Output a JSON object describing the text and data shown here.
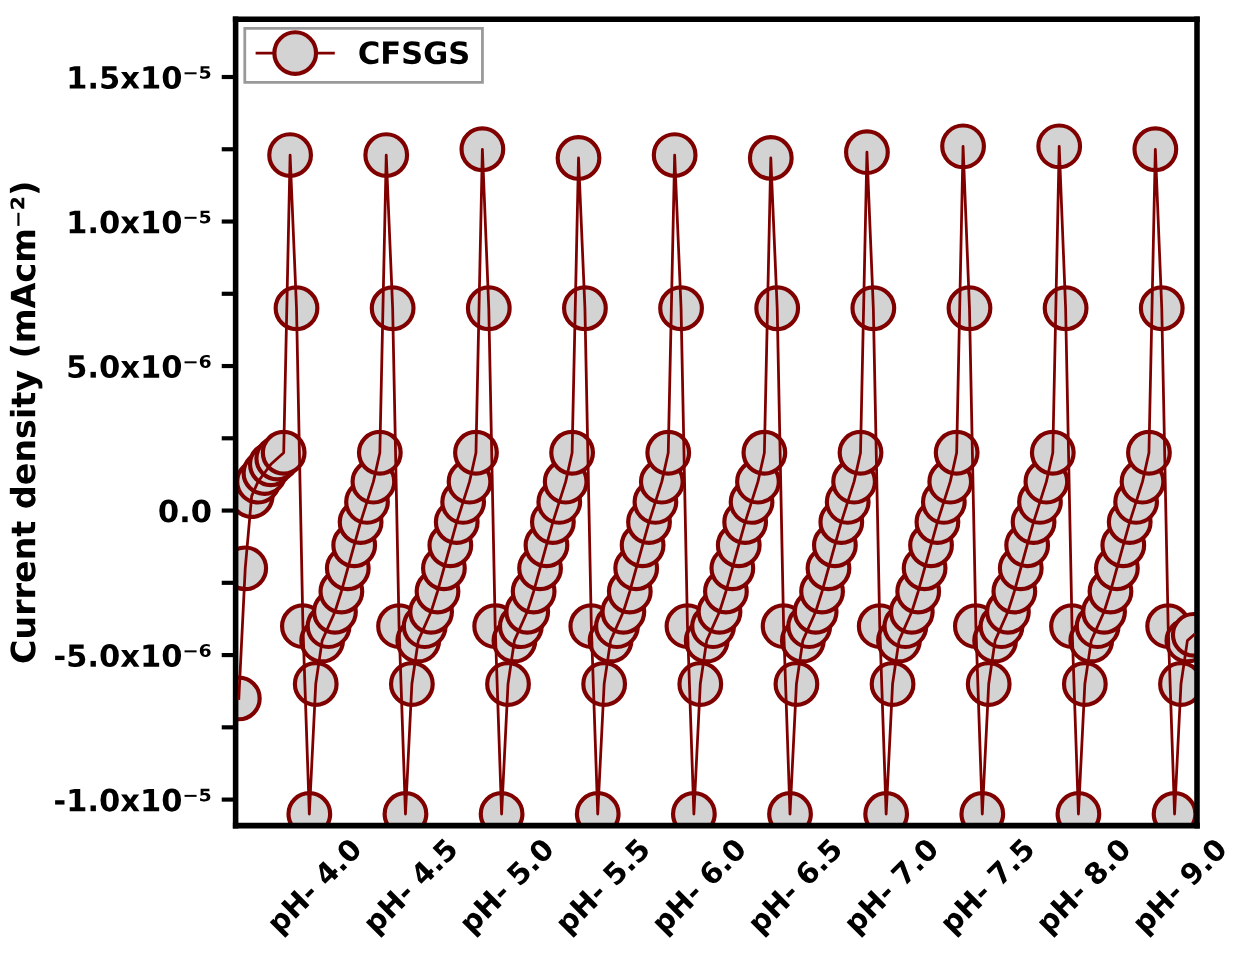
{
  "chart_data": {
    "type": "line",
    "ylabel": "Current density (mAcm⁻²)",
    "ylim": [
      -1.09e-05,
      1.7e-05
    ],
    "categories": [
      null,
      null,
      null,
      null,
      null,
      null,
      null,
      null,
      null,
      null,
      null,
      null,
      "pH- 4.0",
      null,
      null,
      null,
      null,
      null,
      null,
      null,
      null,
      null,
      null,
      null,
      null,
      null,
      null,
      "pH- 4.5",
      null,
      null,
      null,
      null,
      null,
      null,
      null,
      null,
      null,
      null,
      null,
      null,
      null,
      null,
      "pH- 5.0",
      null,
      null,
      null,
      null,
      null,
      null,
      null,
      null,
      null,
      null,
      null,
      null,
      null,
      null,
      "pH- 5.5",
      null,
      null,
      null,
      null,
      null,
      null,
      null,
      null,
      null,
      null,
      null,
      null,
      null,
      null,
      "pH- 6.0",
      null,
      null,
      null,
      null,
      null,
      null,
      null,
      null,
      null,
      null,
      null,
      null,
      null,
      null,
      "pH- 6.5",
      null,
      null,
      null,
      null,
      null,
      null,
      null,
      null,
      null,
      null,
      null,
      null,
      null,
      null,
      "pH- 7.0",
      null,
      null,
      null,
      null,
      null,
      null,
      null,
      null,
      null,
      null,
      null,
      null,
      null,
      null,
      "pH- 7.5",
      null,
      null,
      null,
      null,
      null,
      null,
      null,
      null,
      null,
      null,
      null,
      null,
      null,
      null,
      "pH- 8.0",
      null,
      null,
      null,
      null,
      null,
      null,
      null,
      null,
      null,
      null,
      null,
      null,
      null,
      null,
      "pH- 9.0",
      null,
      null
    ],
    "yticks": [
      {
        "value": -1e-05,
        "label": "-1.0x10⁻⁵"
      },
      {
        "value": -7.5e-06,
        "label": null
      },
      {
        "value": -5e-06,
        "label": "-5.0x10⁻⁶"
      },
      {
        "value": -2.5e-06,
        "label": null
      },
      {
        "value": 0,
        "label": "0.0"
      },
      {
        "value": 2.5e-06,
        "label": null
      },
      {
        "value": 5e-06,
        "label": "5.0x10⁻⁶"
      },
      {
        "value": 7.5e-06,
        "label": null
      },
      {
        "value": 1e-05,
        "label": "1.0x10⁻⁵"
      },
      {
        "value": 1.25e-05,
        "label": null
      },
      {
        "value": 1.5e-05,
        "label": "1.5x10⁻⁵"
      }
    ],
    "legend": "top left",
    "marker": "circle",
    "line_style": "solid",
    "series": [
      {
        "name": "CFSGS",
        "color": "#800000",
        "values": [
          -6.5e-06,
          -2e-06,
          5e-07,
          1e-06,
          1.3e-06,
          1.6e-06,
          1.8e-06,
          2e-06,
          1.23e-05,
          7e-06,
          -4e-06,
          -1.05e-05,
          -6e-06,
          -4.5e-06,
          -4e-06,
          -3.5e-06,
          -2.8e-06,
          -2e-06,
          -1.2e-06,
          -4e-07,
          3e-07,
          1e-06,
          2e-06,
          1.23e-05,
          7e-06,
          -4e-06,
          -1.05e-05,
          -6e-06,
          -4.5e-06,
          -4e-06,
          -3.5e-06,
          -2.8e-06,
          -2e-06,
          -1.2e-06,
          -4e-07,
          3e-07,
          1e-06,
          2e-06,
          1.25e-05,
          7e-06,
          -4e-06,
          -1.05e-05,
          -6e-06,
          -4.5e-06,
          -4e-06,
          -3.5e-06,
          -2.8e-06,
          -2e-06,
          -1.2e-06,
          -4e-07,
          3e-07,
          1e-06,
          2e-06,
          1.22e-05,
          7e-06,
          -4e-06,
          -1.05e-05,
          -6e-06,
          -4.5e-06,
          -4e-06,
          -3.5e-06,
          -2.8e-06,
          -2e-06,
          -1.2e-06,
          -4e-07,
          3e-07,
          1e-06,
          2e-06,
          1.23e-05,
          7e-06,
          -4e-06,
          -1.05e-05,
          -6e-06,
          -4.5e-06,
          -4e-06,
          -3.5e-06,
          -2.8e-06,
          -2e-06,
          -1.2e-06,
          -4e-07,
          3e-07,
          1e-06,
          2e-06,
          1.22e-05,
          7e-06,
          -4e-06,
          -1.05e-05,
          -6e-06,
          -4.5e-06,
          -4e-06,
          -3.5e-06,
          -2.8e-06,
          -2e-06,
          -1.2e-06,
          -4e-07,
          3e-07,
          1e-06,
          2e-06,
          1.24e-05,
          7e-06,
          -4e-06,
          -1.05e-05,
          -6e-06,
          -4.5e-06,
          -4e-06,
          -3.5e-06,
          -2.8e-06,
          -2e-06,
          -1.2e-06,
          -4e-07,
          3e-07,
          1e-06,
          2e-06,
          1.26e-05,
          7e-06,
          -4e-06,
          -1.05e-05,
          -6e-06,
          -4.5e-06,
          -4e-06,
          -3.5e-06,
          -2.8e-06,
          -2e-06,
          -1.2e-06,
          -4e-07,
          3e-07,
          1e-06,
          2e-06,
          1.26e-05,
          7e-06,
          -4e-06,
          -1.05e-05,
          -6e-06,
          -4.5e-06,
          -4e-06,
          -3.5e-06,
          -2.8e-06,
          -2e-06,
          -1.2e-06,
          -4e-07,
          3e-07,
          1e-06,
          2e-06,
          1.25e-05,
          7e-06,
          -4e-06,
          -1.05e-05,
          -6e-06,
          -4.5e-06,
          -4.3e-06
        ]
      }
    ]
  }
}
